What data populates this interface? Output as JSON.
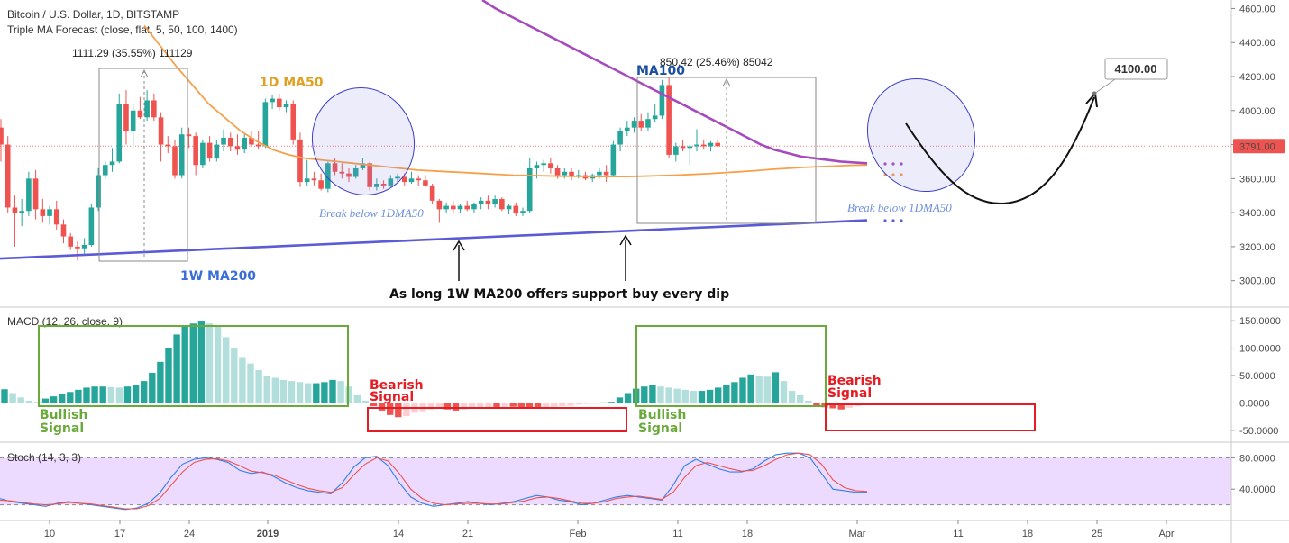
{
  "header": {
    "symbol": "Bitcoin / U.S. Dollar, 1D, BITSTAMP",
    "indicator": "Triple MA Forecast (close, flat, 5, 50, 100, 1400)"
  },
  "chart_data": [
    {
      "type": "candlestick",
      "name": "price",
      "ylim": [
        2850,
        4650
      ],
      "y_ticks": [
        "4600.00",
        "4400.00",
        "4200.00",
        "4000.00",
        "3800.00",
        "3600.00",
        "3400.00",
        "3200.00",
        "3000.00"
      ],
      "last_price": "3791.00",
      "x_ticks": [
        "10",
        "17",
        "24",
        "2019",
        "14",
        "21",
        "Feb",
        "11",
        "18",
        "Mar",
        "11",
        "18",
        "25",
        "Apr"
      ],
      "candles": [
        {
          "o": 3900,
          "h": 3950,
          "l": 3700,
          "c": 3800
        },
        {
          "o": 3800,
          "h": 3850,
          "l": 3400,
          "c": 3430
        },
        {
          "o": 3430,
          "h": 3500,
          "l": 3200,
          "c": 3400
        },
        {
          "o": 3400,
          "h": 3480,
          "l": 3320,
          "c": 3410
        },
        {
          "o": 3410,
          "h": 3640,
          "l": 3380,
          "c": 3600
        },
        {
          "o": 3600,
          "h": 3650,
          "l": 3360,
          "c": 3420
        },
        {
          "o": 3420,
          "h": 3480,
          "l": 3340,
          "c": 3380
        },
        {
          "o": 3380,
          "h": 3440,
          "l": 3330,
          "c": 3420
        },
        {
          "o": 3420,
          "h": 3470,
          "l": 3300,
          "c": 3330
        },
        {
          "o": 3330,
          "h": 3360,
          "l": 3220,
          "c": 3260
        },
        {
          "o": 3260,
          "h": 3280,
          "l": 3180,
          "c": 3200
        },
        {
          "o": 3200,
          "h": 3230,
          "l": 3120,
          "c": 3190
        },
        {
          "o": 3190,
          "h": 3250,
          "l": 3160,
          "c": 3210
        },
        {
          "o": 3210,
          "h": 3450,
          "l": 3200,
          "c": 3430
        },
        {
          "o": 3430,
          "h": 3660,
          "l": 3410,
          "c": 3620
        },
        {
          "o": 3620,
          "h": 3700,
          "l": 3600,
          "c": 3680
        },
        {
          "o": 3680,
          "h": 3780,
          "l": 3640,
          "c": 3700
        },
        {
          "o": 3700,
          "h": 4100,
          "l": 3690,
          "c": 4040
        },
        {
          "o": 4040,
          "h": 4120,
          "l": 3800,
          "c": 3880
        },
        {
          "o": 3880,
          "h": 4040,
          "l": 3780,
          "c": 4000
        },
        {
          "o": 4000,
          "h": 4080,
          "l": 3950,
          "c": 3960
        },
        {
          "o": 3960,
          "h": 4120,
          "l": 3940,
          "c": 4060
        },
        {
          "o": 4060,
          "h": 4100,
          "l": 3940,
          "c": 3960
        },
        {
          "o": 3960,
          "h": 3990,
          "l": 3700,
          "c": 3800
        },
        {
          "o": 3800,
          "h": 3850,
          "l": 3750,
          "c": 3790
        },
        {
          "o": 3790,
          "h": 3830,
          "l": 3600,
          "c": 3620
        },
        {
          "o": 3620,
          "h": 3900,
          "l": 3600,
          "c": 3860
        },
        {
          "o": 3860,
          "h": 3900,
          "l": 3780,
          "c": 3850
        },
        {
          "o": 3850,
          "h": 3870,
          "l": 3620,
          "c": 3680
        },
        {
          "o": 3680,
          "h": 3830,
          "l": 3660,
          "c": 3810
        },
        {
          "o": 3810,
          "h": 3850,
          "l": 3700,
          "c": 3720
        },
        {
          "o": 3720,
          "h": 3830,
          "l": 3700,
          "c": 3800
        },
        {
          "o": 3800,
          "h": 3890,
          "l": 3760,
          "c": 3840
        },
        {
          "o": 3840,
          "h": 3870,
          "l": 3760,
          "c": 3790
        },
        {
          "o": 3790,
          "h": 3860,
          "l": 3740,
          "c": 3770
        },
        {
          "o": 3770,
          "h": 3860,
          "l": 3750,
          "c": 3840
        },
        {
          "o": 3840,
          "h": 3880,
          "l": 3790,
          "c": 3800
        },
        {
          "o": 3800,
          "h": 3880,
          "l": 3770,
          "c": 3790
        },
        {
          "o": 3790,
          "h": 4070,
          "l": 3780,
          "c": 4050
        },
        {
          "o": 4050,
          "h": 4090,
          "l": 4010,
          "c": 4070
        },
        {
          "o": 4070,
          "h": 4100,
          "l": 4000,
          "c": 4020
        },
        {
          "o": 4020,
          "h": 4060,
          "l": 3990,
          "c": 4040
        },
        {
          "o": 4040,
          "h": 4060,
          "l": 3800,
          "c": 3830
        },
        {
          "o": 3830,
          "h": 3870,
          "l": 3550,
          "c": 3580
        },
        {
          "o": 3580,
          "h": 3710,
          "l": 3560,
          "c": 3600
        },
        {
          "o": 3600,
          "h": 3640,
          "l": 3560,
          "c": 3590
        },
        {
          "o": 3590,
          "h": 3630,
          "l": 3530,
          "c": 3540
        },
        {
          "o": 3540,
          "h": 3700,
          "l": 3520,
          "c": 3690
        },
        {
          "o": 3690,
          "h": 3720,
          "l": 3620,
          "c": 3640
        },
        {
          "o": 3640,
          "h": 3690,
          "l": 3600,
          "c": 3630
        },
        {
          "o": 3630,
          "h": 3660,
          "l": 3580,
          "c": 3610
        },
        {
          "o": 3610,
          "h": 3680,
          "l": 3600,
          "c": 3660
        },
        {
          "o": 3660,
          "h": 3720,
          "l": 3650,
          "c": 3690
        },
        {
          "o": 3690,
          "h": 3700,
          "l": 3530,
          "c": 3550
        },
        {
          "o": 3550,
          "h": 3600,
          "l": 3530,
          "c": 3570
        },
        {
          "o": 3570,
          "h": 3590,
          "l": 3540,
          "c": 3560
        },
        {
          "o": 3560,
          "h": 3620,
          "l": 3550,
          "c": 3600
        },
        {
          "o": 3600,
          "h": 3630,
          "l": 3580,
          "c": 3610
        },
        {
          "o": 3610,
          "h": 3630,
          "l": 3560,
          "c": 3580
        },
        {
          "o": 3580,
          "h": 3640,
          "l": 3570,
          "c": 3600
        },
        {
          "o": 3600,
          "h": 3620,
          "l": 3560,
          "c": 3590
        },
        {
          "o": 3590,
          "h": 3620,
          "l": 3550,
          "c": 3560
        },
        {
          "o": 3560,
          "h": 3570,
          "l": 3450,
          "c": 3470
        },
        {
          "o": 3470,
          "h": 3480,
          "l": 3340,
          "c": 3420
        },
        {
          "o": 3420,
          "h": 3460,
          "l": 3400,
          "c": 3440
        },
        {
          "o": 3440,
          "h": 3470,
          "l": 3400,
          "c": 3420
        },
        {
          "o": 3420,
          "h": 3450,
          "l": 3400,
          "c": 3440
        },
        {
          "o": 3440,
          "h": 3470,
          "l": 3410,
          "c": 3420
        },
        {
          "o": 3420,
          "h": 3460,
          "l": 3400,
          "c": 3450
        },
        {
          "o": 3450,
          "h": 3490,
          "l": 3420,
          "c": 3470
        },
        {
          "o": 3470,
          "h": 3500,
          "l": 3420,
          "c": 3450
        },
        {
          "o": 3450,
          "h": 3500,
          "l": 3430,
          "c": 3480
        },
        {
          "o": 3480,
          "h": 3490,
          "l": 3410,
          "c": 3420
        },
        {
          "o": 3420,
          "h": 3450,
          "l": 3390,
          "c": 3440
        },
        {
          "o": 3440,
          "h": 3460,
          "l": 3380,
          "c": 3400
        },
        {
          "o": 3400,
          "h": 3430,
          "l": 3380,
          "c": 3410
        },
        {
          "o": 3410,
          "h": 3720,
          "l": 3400,
          "c": 3660
        },
        {
          "o": 3660,
          "h": 3700,
          "l": 3600,
          "c": 3680
        },
        {
          "o": 3680,
          "h": 3710,
          "l": 3640,
          "c": 3690
        },
        {
          "o": 3690,
          "h": 3720,
          "l": 3630,
          "c": 3660
        },
        {
          "o": 3660,
          "h": 3680,
          "l": 3600,
          "c": 3620
        },
        {
          "o": 3620,
          "h": 3660,
          "l": 3600,
          "c": 3640
        },
        {
          "o": 3640,
          "h": 3660,
          "l": 3590,
          "c": 3610
        },
        {
          "o": 3610,
          "h": 3650,
          "l": 3600,
          "c": 3620
        },
        {
          "o": 3620,
          "h": 3640,
          "l": 3590,
          "c": 3600
        },
        {
          "o": 3600,
          "h": 3630,
          "l": 3580,
          "c": 3620
        },
        {
          "o": 3620,
          "h": 3660,
          "l": 3600,
          "c": 3640
        },
        {
          "o": 3640,
          "h": 3680,
          "l": 3580,
          "c": 3620
        },
        {
          "o": 3620,
          "h": 3820,
          "l": 3610,
          "c": 3800
        },
        {
          "o": 3800,
          "h": 3900,
          "l": 3760,
          "c": 3880
        },
        {
          "o": 3880,
          "h": 3940,
          "l": 3850,
          "c": 3900
        },
        {
          "o": 3900,
          "h": 3960,
          "l": 3870,
          "c": 3940
        },
        {
          "o": 3940,
          "h": 3980,
          "l": 3880,
          "c": 3900
        },
        {
          "o": 3900,
          "h": 3990,
          "l": 3880,
          "c": 3950
        },
        {
          "o": 3950,
          "h": 4040,
          "l": 3930,
          "c": 3970
        },
        {
          "o": 3970,
          "h": 4180,
          "l": 3950,
          "c": 4150
        },
        {
          "o": 4150,
          "h": 4200,
          "l": 3720,
          "c": 3740
        },
        {
          "o": 3740,
          "h": 3810,
          "l": 3700,
          "c": 3790
        },
        {
          "o": 3790,
          "h": 3830,
          "l": 3760,
          "c": 3780
        },
        {
          "o": 3780,
          "h": 3800,
          "l": 3680,
          "c": 3790
        },
        {
          "o": 3790,
          "h": 3890,
          "l": 3760,
          "c": 3800
        },
        {
          "o": 3800,
          "h": 3830,
          "l": 3770,
          "c": 3790
        },
        {
          "o": 3790,
          "h": 3820,
          "l": 3760,
          "c": 3810
        },
        {
          "o": 3810,
          "h": 3830,
          "l": 3790,
          "c": 3791
        }
      ],
      "ma_1w200": [
        3130,
        3135,
        3140,
        3145,
        3150,
        3155,
        3160,
        3165,
        3170,
        3175,
        3180,
        3185,
        3190,
        3195,
        3200,
        3205,
        3210,
        3215,
        3220,
        3225,
        3230,
        3235,
        3240,
        3245,
        3250,
        3255,
        3260,
        3265,
        3270,
        3275,
        3280,
        3285,
        3290,
        3295,
        3300,
        3305,
        3310,
        3315,
        3320,
        3325,
        3330,
        3335,
        3340,
        3345,
        3350,
        3355
      ],
      "ma_1d50": [
        4500,
        4380,
        4260,
        4150,
        4040,
        3960,
        3880,
        3820,
        3770,
        3740,
        3720,
        3710,
        3700,
        3690,
        3680,
        3670,
        3660,
        3650,
        3645,
        3640,
        3635,
        3630,
        3625,
        3620,
        3618,
        3616,
        3614,
        3613,
        3612,
        3612,
        3612,
        3614,
        3617,
        3620,
        3624,
        3628,
        3634,
        3640,
        3646,
        3654,
        3660,
        3666,
        3670,
        3674,
        3678,
        3680
      ],
      "ma_100": [
        4650,
        4600,
        4560,
        4520,
        4480,
        4440,
        4400,
        4360,
        4320,
        4280,
        4240,
        4200,
        4160,
        4120,
        4080,
        4040,
        4000,
        3960,
        3920,
        3880,
        3840,
        3800,
        3770,
        3750,
        3730,
        3720,
        3710,
        3700,
        3695,
        3690
      ],
      "annotations": {
        "measure_left": "1111.29 (35.55%) 111129",
        "measure_right": "850.42 (25.46%) 85042",
        "ma50_label": "1D MA50",
        "ma100_label": "MA100",
        "ma200_label": "1W MA200",
        "break_left": "Break below 1DMA50",
        "break_right": "Break below 1DMA50",
        "support_text": "As long 1W MA200 offers support buy every dip",
        "target_price": "4100.00"
      }
    },
    {
      "type": "bar",
      "name": "macd",
      "title": "MACD (12, 26, close, 9)",
      "ylim": [
        -70,
        175
      ],
      "y_ticks": [
        "150.0000",
        "100.0000",
        "50.0000",
        "0.0000",
        "-50.0000"
      ],
      "values": [
        25,
        18,
        10,
        4,
        2,
        8,
        12,
        16,
        20,
        24,
        28,
        30,
        30,
        29,
        28,
        30,
        32,
        40,
        55,
        75,
        100,
        125,
        140,
        145,
        150,
        145,
        140,
        120,
        100,
        82,
        72,
        60,
        50,
        46,
        42,
        40,
        38,
        36,
        36,
        38,
        42,
        40,
        30,
        14,
        4,
        -6,
        -14,
        -22,
        -26,
        -24,
        -18,
        -15,
        -12,
        -10,
        -12,
        -14,
        -12,
        -10,
        -9,
        -8,
        -8,
        -7,
        -7,
        -8,
        -10,
        -10,
        -8,
        -7,
        -6,
        -5,
        -3,
        -2,
        -1,
        1,
        2,
        10,
        18,
        26,
        30,
        32,
        30,
        28,
        26,
        24,
        22,
        22,
        24,
        28,
        32,
        38,
        46,
        52,
        50,
        48,
        56,
        40,
        22,
        14,
        4,
        -5,
        -8,
        -10,
        -12,
        -9,
        -6
      ],
      "labels": {
        "bullish_left": [
          "Bullish",
          "Signal"
        ],
        "bearish_left": [
          "Bearish",
          "Signal"
        ],
        "bullish_right": [
          "Bullish",
          "Signal"
        ],
        "bearish_right": [
          "Bearish",
          "Signal"
        ]
      }
    },
    {
      "type": "line",
      "name": "stoch",
      "title": "Stoch (14, 3, 3)",
      "ylim": [
        0,
        100
      ],
      "y_ticks": [
        "80.0000",
        "40.0000"
      ],
      "upper_band": 80,
      "lower_band": 20,
      "series": [
        {
          "values": [
            28,
            24,
            22,
            20,
            18,
            22,
            24,
            22,
            20,
            18,
            16,
            14,
            16,
            22,
            35,
            55,
            72,
            78,
            80,
            78,
            74,
            64,
            60,
            62,
            56,
            48,
            42,
            38,
            36,
            34,
            48,
            68,
            80,
            82,
            70,
            48,
            30,
            22,
            18,
            20,
            22,
            24,
            22,
            20,
            22,
            24,
            28,
            32,
            30,
            26,
            24,
            20,
            22,
            26,
            30,
            32,
            30,
            28,
            26,
            45,
            70,
            78,
            72,
            66,
            62,
            62,
            66,
            76,
            84,
            86,
            86,
            80,
            60,
            40,
            38,
            36,
            36
          ]
        },
        {
          "values": [
            26,
            25,
            23,
            21,
            20,
            21,
            23,
            22,
            21,
            19,
            17,
            15,
            15,
            19,
            28,
            45,
            62,
            74,
            78,
            79,
            76,
            70,
            63,
            61,
            58,
            52,
            46,
            41,
            38,
            36,
            42,
            58,
            72,
            80,
            76,
            60,
            40,
            28,
            22,
            20,
            21,
            22,
            22,
            21,
            21,
            23,
            25,
            29,
            30,
            28,
            25,
            22,
            22,
            24,
            28,
            30,
            31,
            29,
            27,
            36,
            55,
            70,
            74,
            70,
            66,
            63,
            64,
            70,
            78,
            84,
            86,
            84,
            72,
            52,
            42,
            38,
            37
          ]
        }
      ]
    }
  ]
}
